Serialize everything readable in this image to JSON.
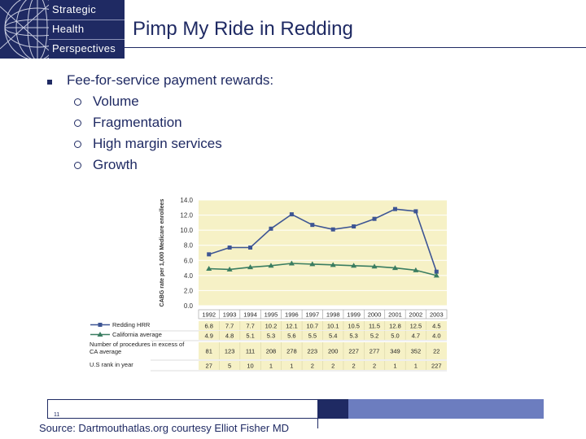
{
  "logo": {
    "lines": [
      "Strategic",
      "Health",
      "Perspectives"
    ]
  },
  "slide": {
    "title": "Pimp My Ride in Redding",
    "lead": "Fee-for-service payment rewards:",
    "subitems": [
      "Volume",
      "Fragmentation",
      "High margin services",
      "Growth"
    ],
    "page_number": "11",
    "source": "Source:  Dartmouthatlas.org courtesy Elliot Fisher MD"
  },
  "colors": {
    "brand": "#1f2a63",
    "accent": "#6c7dbf",
    "plot_background": "#f6f1c6",
    "redding_series": "#3d5594",
    "california_series": "#3a7d61"
  },
  "chart_data": {
    "type": "line",
    "ylabel": "CABG rate per 1,000 Medicare enrollees",
    "ylim": [
      0,
      14
    ],
    "yticks": [
      "0.0",
      "2.0",
      "4.0",
      "6.0",
      "8.0",
      "10.0",
      "12.0",
      "14.0"
    ],
    "grid": true,
    "x": [
      "1992",
      "1993",
      "1994",
      "1995",
      "1996",
      "1997",
      "1998",
      "1999",
      "2000",
      "2001",
      "2002",
      "2003"
    ],
    "series": [
      {
        "name": "Redding HRR",
        "marker": "square",
        "values": [
          6.8,
          7.7,
          7.7,
          10.2,
          12.1,
          10.7,
          10.1,
          10.5,
          11.5,
          12.8,
          12.5,
          4.5
        ]
      },
      {
        "name": "California average",
        "marker": "triangle",
        "values": [
          4.9,
          4.8,
          5.1,
          5.3,
          5.6,
          5.5,
          5.4,
          5.3,
          5.2,
          5.0,
          4.7,
          4.0
        ]
      }
    ],
    "table": {
      "rows": [
        {
          "label": "Redding HRR",
          "values": [
            "6.8",
            "7.7",
            "7.7",
            "10.2",
            "12.1",
            "10.7",
            "10.1",
            "10.5",
            "11.5",
            "12.8",
            "12.5",
            "4.5"
          ]
        },
        {
          "label": "California average",
          "values": [
            "4.9",
            "4.8",
            "5.1",
            "5.3",
            "5.6",
            "5.5",
            "5.4",
            "5.3",
            "5.2",
            "5.0",
            "4.7",
            "4.0"
          ]
        },
        {
          "label": "Number of procedures in excess of CA average",
          "values": [
            "81",
            "123",
            "111",
            "208",
            "278",
            "223",
            "200",
            "227",
            "277",
            "349",
            "352",
            "22"
          ]
        },
        {
          "label": "U.S rank in year",
          "values": [
            "27",
            "5",
            "10",
            "1",
            "1",
            "2",
            "2",
            "2",
            "2",
            "1",
            "1",
            "227"
          ]
        }
      ]
    }
  }
}
